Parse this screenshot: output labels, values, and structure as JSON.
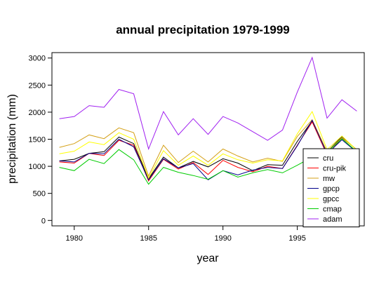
{
  "chart_data": {
    "type": "line",
    "title": "annual precipitation 1979-1999",
    "xlabel": "year",
    "ylabel": "precipitation (mm)",
    "xlim": [
      1978.5,
      1999.5
    ],
    "ylim": [
      -100,
      3100
    ],
    "xticks": [
      1980,
      1985,
      1990,
      1995
    ],
    "yticks": [
      0,
      500,
      1000,
      1500,
      2000,
      2500,
      3000
    ],
    "grid": false,
    "legend_position": "bottom-right",
    "x": [
      1979,
      1980,
      1981,
      1982,
      1983,
      1984,
      1985,
      1986,
      1987,
      1988,
      1989,
      1990,
      1991,
      1992,
      1993,
      1994,
      1995,
      1996,
      1997,
      1998,
      1999
    ],
    "series": [
      {
        "name": "cru",
        "color": "#000000",
        "values": [
          1100,
          1130,
          1240,
          1270,
          1540,
          1420,
          770,
          1170,
          970,
          1090,
          990,
          1140,
          1060,
          920,
          1030,
          1020,
          1460,
          1840,
          1270,
          1550,
          1300
        ]
      },
      {
        "name": "cru-pik",
        "color": "#ff0000",
        "values": [
          1080,
          1060,
          1240,
          1200,
          1480,
          1390,
          730,
          1130,
          950,
          1070,
          850,
          1110,
          980,
          900,
          1000,
          960,
          1390,
          1820,
          1210,
          1520,
          1250
        ]
      },
      {
        "name": "mw",
        "color": "#d4a017",
        "values": [
          1350,
          1420,
          1580,
          1510,
          1710,
          1620,
          820,
          1390,
          1070,
          1280,
          1080,
          1320,
          1190,
          1080,
          1150,
          1090,
          1550,
          1860,
          1270,
          1530,
          1310
        ]
      },
      {
        "name": "gpcp",
        "color": "#00008b",
        "values": [
          1100,
          1080,
          1240,
          1230,
          1500,
          1360,
          750,
          1140,
          970,
          1050,
          750,
          920,
          840,
          930,
          980,
          960,
          1380,
          1850,
          1230,
          1490,
          1260
        ]
      },
      {
        "name": "gpcc",
        "color": "#ffff00",
        "values": [
          1230,
          1280,
          1450,
          1400,
          1620,
          1500,
          780,
          1290,
          1020,
          1190,
          1020,
          1230,
          1120,
          1060,
          1120,
          1100,
          1600,
          2010,
          1310,
          1560,
          1300
        ]
      },
      {
        "name": "cmap",
        "color": "#00cc00",
        "values": [
          980,
          920,
          1130,
          1050,
          1310,
          1120,
          670,
          980,
          890,
          830,
          760,
          920,
          800,
          880,
          940,
          880,
          1020,
          1170,
          1260,
          1510,
          1270
        ]
      },
      {
        "name": "adam",
        "color": "#a020f0",
        "values": [
          1880,
          1920,
          2120,
          2090,
          2420,
          2340,
          1320,
          2010,
          1580,
          1880,
          1590,
          1920,
          1800,
          1640,
          1480,
          1670,
          2370,
          3010,
          1890,
          2230,
          2020
        ]
      }
    ]
  }
}
